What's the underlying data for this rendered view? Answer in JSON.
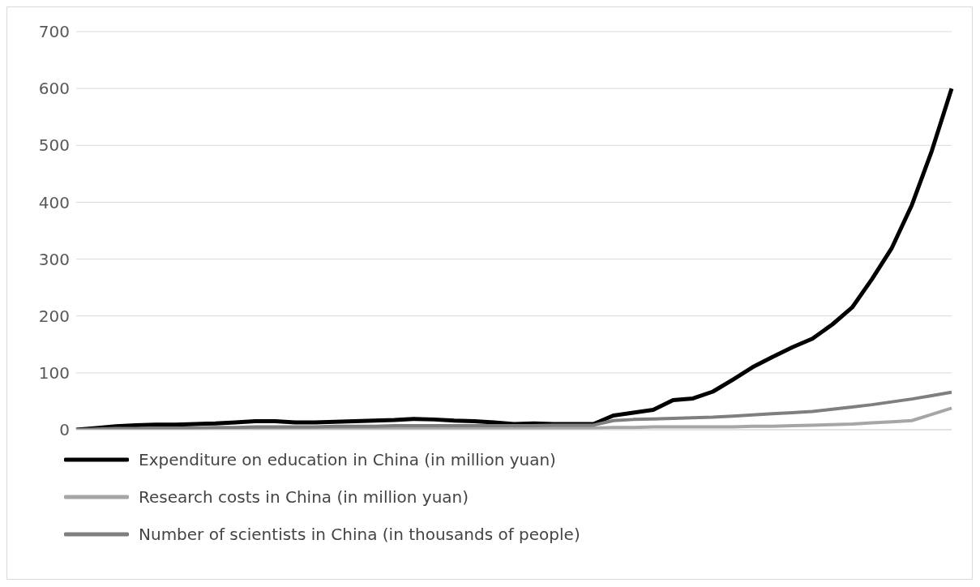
{
  "chart_data": {
    "type": "line",
    "categories": [
      null,
      null,
      null,
      null,
      null,
      null,
      null,
      null,
      null,
      null,
      null,
      null,
      null,
      null,
      null,
      null,
      null,
      null,
      null,
      null,
      null,
      null,
      null,
      null,
      null,
      null,
      null,
      null,
      null,
      null,
      null,
      null,
      null,
      null,
      null,
      null,
      null,
      null,
      null,
      null,
      null,
      null,
      null,
      null,
      null
    ],
    "series": [
      {
        "name": "Expenditure on education in China (in million yuan)",
        "color": "#000000",
        "values": [
          0,
          3,
          6,
          8,
          9,
          9,
          10,
          11,
          13,
          15,
          15,
          13,
          13,
          14,
          15,
          16,
          17,
          19,
          18,
          16,
          15,
          13,
          10,
          11,
          10,
          10,
          10,
          25,
          30,
          35,
          52,
          55,
          67,
          88,
          110,
          128,
          145,
          160,
          185,
          215,
          265,
          320,
          395,
          490,
          600
        ]
      },
      {
        "name": "Research costs in China (in million yuan)",
        "color": "#a6a6a6",
        "values": [
          0,
          0,
          0,
          1,
          1,
          1,
          1,
          1,
          2,
          2,
          2,
          2,
          2,
          2,
          3,
          3,
          3,
          3,
          3,
          3,
          3,
          3,
          3,
          3,
          3,
          3,
          3,
          4,
          4,
          5,
          5,
          5,
          5,
          5,
          6,
          6,
          7,
          8,
          9,
          10,
          12,
          14,
          16,
          27,
          38
        ]
      },
      {
        "name": "Number of scientists in China (in thousands of people)",
        "color": "#7f7f7f",
        "values": [
          0,
          1,
          2,
          2,
          3,
          3,
          3,
          4,
          4,
          5,
          5,
          5,
          5,
          6,
          6,
          6,
          7,
          7,
          7,
          7,
          7,
          7,
          7,
          7,
          8,
          8,
          8,
          16,
          18,
          19,
          20,
          21,
          22,
          24,
          26,
          28,
          30,
          32,
          36,
          40,
          44,
          49,
          54,
          60,
          66
        ]
      }
    ],
    "ylim": [
      0,
      700
    ],
    "yticks": [
      0,
      100,
      200,
      300,
      400,
      500,
      600,
      700
    ],
    "grid": "y",
    "legend": "bottom left",
    "tick_labels": "y",
    "marker": "none",
    "line_style": "solid"
  }
}
